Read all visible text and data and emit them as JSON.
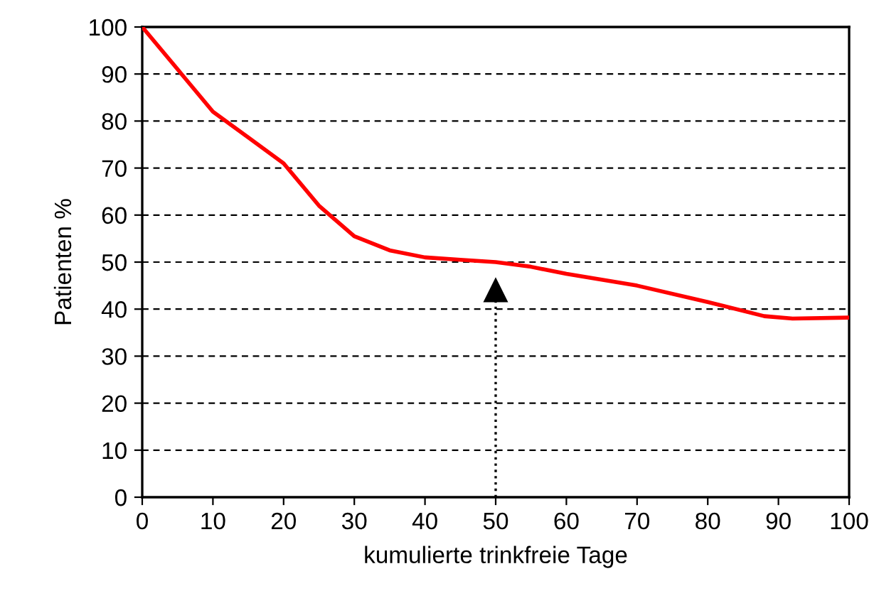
{
  "chart_data": {
    "type": "line",
    "xlabel": "kumulierte trinkfreie Tage",
    "ylabel": "Patienten %",
    "x": [
      0,
      5,
      10,
      15,
      20,
      25,
      30,
      35,
      40,
      45,
      50,
      55,
      60,
      70,
      80,
      88,
      92,
      100
    ],
    "series": [
      {
        "color": "#ff0000",
        "values": [
          100,
          91,
          82,
          76.5,
          71,
          62,
          55.5,
          52.5,
          51,
          50.5,
          50,
          49,
          47.5,
          45,
          41.5,
          38.5,
          38,
          38.2
        ]
      }
    ],
    "xlim": [
      0,
      100
    ],
    "xticks": [
      0,
      10,
      20,
      30,
      40,
      50,
      60,
      70,
      80,
      90,
      100
    ],
    "ylim": [
      0,
      100
    ],
    "yticks": [
      0,
      10,
      20,
      30,
      40,
      50,
      60,
      70,
      80,
      90,
      100
    ],
    "grid": "y",
    "marker": "none",
    "line_style": "solid",
    "ref_lines": [
      {
        "axis": "x",
        "value": 50,
        "line_style": "dotted",
        "color": "#000000"
      }
    ]
  }
}
